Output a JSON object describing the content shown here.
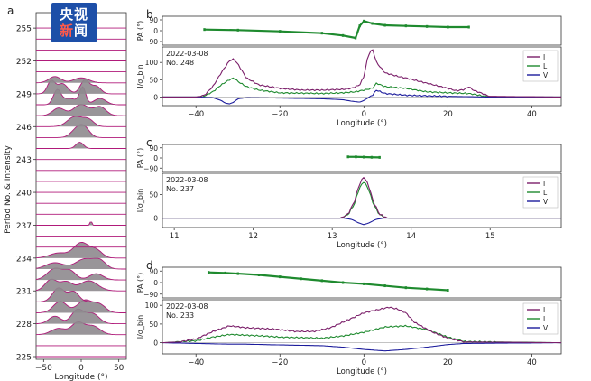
{
  "watermark": {
    "line1": "央视",
    "line2_red": "新",
    "line2_white": "闻"
  },
  "colors": {
    "I": "#7b1f6a",
    "L": "#1e8a2e",
    "V": "#1c1c9c",
    "PA": "#1e8a2e",
    "stack_fill": "#8e8a8e",
    "stack_line": "#b01a7a"
  },
  "chart_data": [
    {
      "panel_label": "a",
      "type": "area",
      "ylabel": "Period No. & Intensity",
      "xlabel": "Longitude (°)",
      "xticks": [
        "−50",
        "0",
        "50"
      ],
      "xlim": [
        -60,
        60
      ],
      "period_ticks": [
        "255",
        "252",
        "249",
        "246",
        "243",
        "240",
        "237",
        "234",
        "231",
        "228",
        "225"
      ],
      "periods": [
        225,
        226,
        227,
        228,
        229,
        230,
        231,
        232,
        233,
        234,
        235,
        236,
        237,
        238,
        239,
        240,
        241,
        242,
        243,
        244,
        245,
        246,
        247,
        248,
        249,
        250,
        251,
        252,
        253,
        254,
        255
      ],
      "active_periods": [
        {
          "period": 227,
          "components": [
            [
              -30,
              10,
              0.5
            ],
            [
              -5,
              8,
              0.9
            ],
            [
              15,
              10,
              0.7
            ]
          ]
        },
        {
          "period": 228,
          "components": [
            [
              -35,
              8,
              0.6
            ],
            [
              -5,
              8,
              1.1
            ],
            [
              15,
              9,
              0.8
            ]
          ]
        },
        {
          "period": 229,
          "components": [
            [
              -28,
              9,
              0.9
            ],
            [
              5,
              10,
              1.0
            ],
            [
              25,
              8,
              0.6
            ]
          ]
        },
        {
          "period": 230,
          "components": [
            [
              -30,
              8,
              1.1
            ],
            [
              -10,
              7,
              0.8
            ]
          ]
        },
        {
          "period": 231,
          "components": [
            [
              -40,
              8,
              0.9
            ],
            [
              -20,
              8,
              0.7
            ],
            [
              10,
              12,
              0.8
            ]
          ]
        },
        {
          "period": 232,
          "components": [
            [
              -35,
              10,
              0.9
            ],
            [
              -15,
              8,
              0.7
            ],
            [
              20,
              9,
              0.5
            ]
          ]
        },
        {
          "period": 233,
          "components": [
            [
              -35,
              12,
              0.5
            ],
            [
              5,
              12,
              0.8
            ],
            [
              25,
              8,
              0.6
            ]
          ]
        },
        {
          "period": 234,
          "components": [
            [
              0,
              10,
              1.2
            ],
            [
              -30,
              12,
              0.4
            ],
            [
              20,
              8,
              0.6
            ]
          ]
        },
        {
          "period": 237,
          "components": [
            [
              13,
              1,
              0.4
            ]
          ]
        },
        {
          "period": 244,
          "components": [
            [
              -2,
              5,
              0.5
            ]
          ]
        },
        {
          "period": 245,
          "components": [
            [
              -5,
              8,
              0.7
            ],
            [
              5,
              7,
              0.6
            ]
          ]
        },
        {
          "period": 246,
          "components": [
            [
              -8,
              10,
              0.8
            ],
            [
              10,
              7,
              0.5
            ]
          ]
        },
        {
          "period": 247,
          "components": [
            [
              -30,
              8,
              0.6
            ],
            [
              0,
              10,
              0.9
            ],
            [
              25,
              8,
              0.7
            ]
          ]
        },
        {
          "period": 248,
          "components": [
            [
              -32,
              5,
              1.1
            ],
            [
              2,
              4,
              1.3
            ],
            [
              -15,
              10,
              0.5
            ],
            [
              25,
              8,
              0.5
            ]
          ]
        },
        {
          "period": 249,
          "components": [
            [
              -40,
              5,
              1.0
            ],
            [
              -25,
              7,
              0.8
            ],
            [
              5,
              6,
              1.1
            ],
            [
              20,
              6,
              0.6
            ]
          ]
        },
        {
          "period": 250,
          "components": [
            [
              -35,
              8,
              0.5
            ],
            [
              0,
              10,
              0.4
            ]
          ]
        }
      ]
    },
    {
      "panel_label": "b",
      "type": "line",
      "date": "2022-03-08",
      "pulse": "No. 248",
      "pa_label": "PA (°)",
      "pa_ticks": [
        "90",
        "0",
        "−90"
      ],
      "ylabel": "I/σ_bin",
      "y_ticks": [
        "100",
        "50",
        "0"
      ],
      "xlabel": "Longitude (°)",
      "xlim": [
        -48,
        47
      ],
      "ylim": [
        -25,
        145
      ],
      "xticks": [
        -40,
        -20,
        0,
        20,
        40
      ],
      "legend": [
        "I",
        "L",
        "V"
      ],
      "legend_position": "top-right",
      "series": [
        {
          "name": "I",
          "x": [
            -48,
            -40,
            -38,
            -36,
            -34,
            -32,
            -31,
            -30,
            -28,
            -25,
            -20,
            -15,
            -10,
            -5,
            -3,
            -1,
            0,
            1,
            2,
            3,
            5,
            8,
            10,
            15,
            20,
            22,
            24,
            25,
            26,
            30,
            47
          ],
          "y": [
            0,
            0,
            5,
            30,
            70,
            105,
            110,
            95,
            55,
            35,
            25,
            20,
            20,
            22,
            25,
            35,
            60,
            120,
            140,
            100,
            70,
            60,
            55,
            40,
            25,
            18,
            22,
            30,
            20,
            2,
            0
          ]
        },
        {
          "name": "L",
          "x": [
            -48,
            -40,
            -38,
            -36,
            -34,
            -32,
            -31,
            -30,
            -28,
            -25,
            -20,
            -10,
            -5,
            -2,
            0,
            2,
            3,
            5,
            10,
            15,
            20,
            25,
            30,
            47
          ],
          "y": [
            0,
            0,
            3,
            15,
            35,
            50,
            55,
            45,
            30,
            20,
            12,
            10,
            12,
            15,
            20,
            25,
            40,
            30,
            25,
            15,
            12,
            10,
            0,
            0
          ]
        },
        {
          "name": "V",
          "x": [
            -48,
            -40,
            -36,
            -34,
            -33,
            -32,
            -31,
            -30,
            -28,
            -20,
            -10,
            -5,
            -3,
            -1,
            0,
            2,
            3,
            5,
            10,
            20,
            30,
            47
          ],
          "y": [
            0,
            0,
            -2,
            -10,
            -18,
            -20,
            -15,
            -5,
            -2,
            -3,
            -5,
            -8,
            -12,
            -15,
            -10,
            5,
            20,
            10,
            5,
            2,
            0,
            0
          ]
        }
      ],
      "pa_points": [
        [
          -38,
          10
        ],
        [
          -30,
          5
        ],
        [
          -20,
          -5
        ],
        [
          -10,
          -20
        ],
        [
          -5,
          -40
        ],
        [
          -2,
          -60
        ],
        [
          -1,
          40
        ],
        [
          0,
          80
        ],
        [
          2,
          60
        ],
        [
          5,
          45
        ],
        [
          10,
          40
        ],
        [
          15,
          35
        ],
        [
          20,
          30
        ],
        [
          25,
          30
        ]
      ]
    },
    {
      "panel_label": "c",
      "type": "line",
      "date": "2022-03-08",
      "pulse": "No. 237",
      "pa_label": "PA (°)",
      "pa_ticks": [
        "90",
        "0",
        "−90"
      ],
      "ylabel": "I/σ_bin",
      "y_ticks": [
        "50",
        "0"
      ],
      "xlabel": "Longitude (°)",
      "xlim": [
        10.85,
        15.9
      ],
      "ylim": [
        -20,
        95
      ],
      "xticks": [
        11,
        12,
        13,
        14,
        15
      ],
      "legend": [
        "I",
        "L",
        "V"
      ],
      "legend_position": "top-right",
      "series": [
        {
          "name": "I",
          "x": [
            10.85,
            13.1,
            13.2,
            13.28,
            13.34,
            13.4,
            13.46,
            13.52,
            13.6,
            13.7,
            15.9
          ],
          "y": [
            0,
            0,
            8,
            35,
            70,
            88,
            70,
            35,
            8,
            0,
            0
          ]
        },
        {
          "name": "L",
          "x": [
            10.85,
            13.1,
            13.2,
            13.28,
            13.34,
            13.4,
            13.46,
            13.52,
            13.6,
            13.7,
            15.9
          ],
          "y": [
            0,
            0,
            7,
            30,
            62,
            78,
            62,
            30,
            7,
            0,
            0
          ]
        },
        {
          "name": "V",
          "x": [
            10.85,
            13.15,
            13.25,
            13.33,
            13.4,
            13.47,
            13.55,
            13.65,
            15.9
          ],
          "y": [
            0,
            0,
            -3,
            -10,
            -14,
            -10,
            -3,
            0,
            0
          ]
        }
      ],
      "pa_points": [
        [
          13.2,
          10
        ],
        [
          13.3,
          10
        ],
        [
          13.4,
          8
        ],
        [
          13.5,
          6
        ],
        [
          13.6,
          5
        ]
      ]
    },
    {
      "panel_label": "d",
      "type": "line",
      "date": "2022-03-08",
      "pulse": "No. 233",
      "pa_label": "PA (°)",
      "pa_ticks": [
        "90",
        "0",
        "−90"
      ],
      "ylabel": "I/σ_bin",
      "y_ticks": [
        "100",
        "50",
        "0"
      ],
      "xlabel": "Longitude (°)",
      "xlim": [
        -48,
        47
      ],
      "ylim": [
        -30,
        115
      ],
      "xticks": [
        -40,
        -20,
        0,
        20,
        40
      ],
      "legend": [
        "I",
        "L",
        "V"
      ],
      "legend_position": "top-right",
      "series": [
        {
          "name": "I",
          "x": [
            -48,
            -44,
            -40,
            -36,
            -32,
            -28,
            -24,
            -20,
            -16,
            -12,
            -8,
            -4,
            0,
            4,
            6,
            8,
            10,
            12,
            16,
            20,
            24,
            47
          ],
          "y": [
            0,
            2,
            10,
            30,
            45,
            40,
            38,
            35,
            30,
            30,
            40,
            60,
            80,
            90,
            95,
            90,
            80,
            55,
            30,
            12,
            2,
            0
          ]
        },
        {
          "name": "L",
          "x": [
            -48,
            -40,
            -36,
            -32,
            -28,
            -24,
            -20,
            -10,
            -5,
            0,
            5,
            10,
            15,
            20,
            24,
            47
          ],
          "y": [
            0,
            5,
            15,
            22,
            20,
            18,
            15,
            12,
            18,
            28,
            42,
            45,
            35,
            15,
            3,
            0
          ]
        },
        {
          "name": "V",
          "x": [
            -48,
            -40,
            -36,
            -32,
            -28,
            -24,
            -20,
            -10,
            -5,
            0,
            5,
            10,
            15,
            20,
            24,
            47
          ],
          "y": [
            0,
            -2,
            -3,
            -4,
            -4,
            -5,
            -6,
            -8,
            -12,
            -18,
            -22,
            -18,
            -12,
            -5,
            -2,
            0
          ]
        }
      ],
      "pa_points": [
        [
          -37,
          80
        ],
        [
          -33,
          75
        ],
        [
          -30,
          70
        ],
        [
          -25,
          60
        ],
        [
          -20,
          45
        ],
        [
          -15,
          30
        ],
        [
          -10,
          15
        ],
        [
          -5,
          0
        ],
        [
          0,
          -10
        ],
        [
          5,
          -25
        ],
        [
          10,
          -40
        ],
        [
          15,
          -50
        ],
        [
          20,
          -60
        ]
      ]
    }
  ]
}
